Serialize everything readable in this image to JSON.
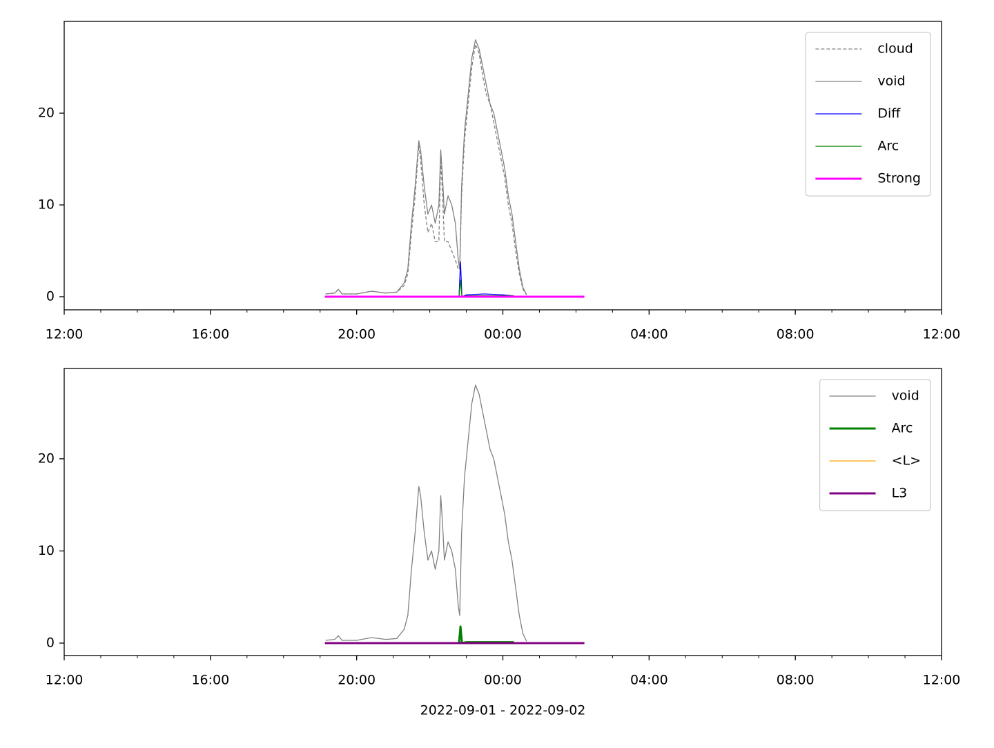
{
  "chart_data": [
    {
      "type": "line",
      "xlim": [
        0,
        24
      ],
      "ylim": [
        -1.43,
        30
      ],
      "xticks": [
        {
          "value": 0,
          "label": "12:00"
        },
        {
          "value": 4,
          "label": "16:00"
        },
        {
          "value": 8,
          "label": "20:00"
        },
        {
          "value": 12,
          "label": "00:00"
        },
        {
          "value": 16,
          "label": "04:00"
        },
        {
          "value": 20,
          "label": "08:00"
        },
        {
          "value": 24,
          "label": "12:00"
        }
      ],
      "yticks": [
        0,
        10,
        20
      ],
      "legend": "upper right",
      "series": [
        {
          "name": "cloud",
          "color": "#808080",
          "linestyle": "dashed",
          "linewidth": 1.3,
          "x": [
            7.15,
            7.4,
            7.5,
            7.6,
            8.0,
            8.4,
            8.8,
            9.1,
            9.3,
            9.4,
            9.5,
            9.6,
            9.7,
            9.75,
            9.85,
            9.95,
            10.05,
            10.15,
            10.25,
            10.3,
            10.35,
            10.4,
            10.5,
            10.6,
            10.7,
            10.78,
            10.82,
            10.87,
            10.95,
            11.05,
            11.15,
            11.25,
            11.35,
            11.45,
            11.55,
            11.65,
            11.75,
            11.85,
            11.95,
            12.05,
            12.15,
            12.25,
            12.35,
            12.45,
            12.55,
            12.65
          ],
          "values": [
            0.3,
            0.4,
            0.8,
            0.3,
            0.3,
            0.6,
            0.4,
            0.5,
            1.2,
            2.5,
            7,
            11,
            16.5,
            15,
            10,
            7,
            8,
            6,
            6,
            15,
            11,
            6,
            6,
            5,
            4,
            3,
            3,
            11,
            17,
            21,
            25,
            27.5,
            26.5,
            24,
            22,
            21,
            19,
            17,
            15,
            13,
            10,
            8,
            5,
            2.5,
            0.8,
            0.2
          ]
        },
        {
          "name": "void",
          "color": "#808080",
          "linestyle": "solid",
          "linewidth": 1.3,
          "x": [
            7.15,
            7.4,
            7.5,
            7.6,
            8.0,
            8.4,
            8.8,
            9.1,
            9.3,
            9.4,
            9.5,
            9.6,
            9.7,
            9.75,
            9.85,
            9.95,
            10.05,
            10.15,
            10.25,
            10.3,
            10.35,
            10.4,
            10.5,
            10.6,
            10.7,
            10.78,
            10.82,
            10.87,
            10.95,
            11.05,
            11.15,
            11.25,
            11.35,
            11.45,
            11.55,
            11.65,
            11.75,
            11.85,
            11.95,
            12.05,
            12.15,
            12.25,
            12.35,
            12.45,
            12.55,
            12.65
          ],
          "values": [
            0.3,
            0.4,
            0.8,
            0.3,
            0.3,
            0.6,
            0.4,
            0.5,
            1.5,
            3,
            8,
            12,
            17,
            16,
            12,
            9,
            10,
            8,
            10,
            16,
            13,
            9,
            11,
            10,
            8,
            4,
            3,
            12,
            18,
            22,
            26,
            28,
            27,
            25,
            23,
            21,
            20,
            18,
            16,
            14,
            11,
            9,
            6,
            3,
            1,
            0.2
          ]
        },
        {
          "name": "Diff",
          "color": "#0000ff",
          "linestyle": "solid",
          "linewidth": 1.3,
          "x": [
            10.8,
            10.84,
            10.88,
            11.0,
            11.5,
            12.0,
            12.3
          ],
          "values": [
            0,
            3.8,
            0,
            0.2,
            0.3,
            0.2,
            0.1
          ]
        },
        {
          "name": "Arc",
          "color": "#008000",
          "linestyle": "solid",
          "linewidth": 1.3,
          "x": [
            10.8,
            10.84,
            10.88,
            11.0,
            12.3
          ],
          "values": [
            0,
            1.8,
            0,
            0.1,
            0.1
          ]
        },
        {
          "name": "Strong",
          "color": "#ff00ff",
          "linestyle": "solid",
          "linewidth": 3,
          "x": [
            7.13,
            14.23
          ],
          "values": [
            0,
            0
          ]
        }
      ]
    },
    {
      "type": "line",
      "xlim": [
        0,
        24
      ],
      "ylim": [
        -1.35,
        29.8
      ],
      "xticks": [
        {
          "value": 0,
          "label": "12:00"
        },
        {
          "value": 4,
          "label": "16:00"
        },
        {
          "value": 8,
          "label": "20:00"
        },
        {
          "value": 12,
          "label": "00:00"
        },
        {
          "value": 16,
          "label": "04:00"
        },
        {
          "value": 20,
          "label": "08:00"
        },
        {
          "value": 24,
          "label": "12:00"
        }
      ],
      "yticks": [
        0,
        10,
        20
      ],
      "legend": "upper right",
      "xlabel": "2022-09-01 - 2022-09-02",
      "series": [
        {
          "name": "void",
          "color": "#808080",
          "linestyle": "solid",
          "linewidth": 1.3,
          "x": [
            7.15,
            7.4,
            7.5,
            7.6,
            8.0,
            8.4,
            8.8,
            9.1,
            9.3,
            9.4,
            9.5,
            9.6,
            9.7,
            9.75,
            9.85,
            9.95,
            10.05,
            10.15,
            10.25,
            10.3,
            10.35,
            10.4,
            10.5,
            10.6,
            10.7,
            10.78,
            10.82,
            10.87,
            10.95,
            11.05,
            11.15,
            11.25,
            11.35,
            11.45,
            11.55,
            11.65,
            11.75,
            11.85,
            11.95,
            12.05,
            12.15,
            12.25,
            12.35,
            12.45,
            12.55,
            12.65
          ],
          "values": [
            0.3,
            0.4,
            0.8,
            0.3,
            0.3,
            0.6,
            0.4,
            0.5,
            1.5,
            3,
            8,
            12,
            17,
            16,
            12,
            9,
            10,
            8,
            10,
            16,
            13,
            9,
            11,
            10,
            8,
            4,
            3,
            12,
            18,
            22,
            26,
            28,
            27,
            25,
            23,
            21,
            20,
            18,
            16,
            14,
            11,
            9,
            6,
            3,
            1,
            0.2
          ]
        },
        {
          "name": "Arc",
          "color": "#008000",
          "linestyle": "solid",
          "linewidth": 3,
          "x": [
            10.8,
            10.84,
            10.88,
            11.0,
            12.3
          ],
          "values": [
            0,
            1.8,
            0,
            0.1,
            0.1
          ]
        },
        {
          "name": "<L>",
          "color": "#ffa500",
          "linestyle": "solid",
          "linewidth": 1.3,
          "x": [
            7.13,
            14.23
          ],
          "values": [
            0,
            0
          ]
        },
        {
          "name": "L3",
          "color": "#800080",
          "linestyle": "solid",
          "linewidth": 3,
          "x": [
            7.13,
            14.23
          ],
          "values": [
            0,
            0
          ]
        }
      ]
    }
  ]
}
